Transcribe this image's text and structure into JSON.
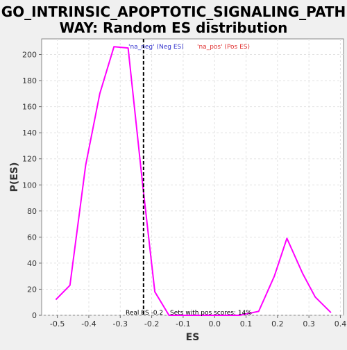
{
  "chart_data": {
    "type": "line",
    "title_lines": [
      "GO_INTRINSIC_APOPTOTIC_SIGNALING_PATH",
      "WAY: Random ES distribution"
    ],
    "xlabel": "ES",
    "ylabel": "P(ES)",
    "xlim": [
      -0.55,
      0.41
    ],
    "ylim": [
      0,
      212
    ],
    "x_ticks": [
      -0.5,
      -0.4,
      -0.3,
      -0.2,
      -0.1,
      0.0,
      0.1,
      0.2,
      0.3,
      0.4
    ],
    "x_tick_labels": [
      "-0.5",
      "-0.4",
      "-0.3",
      "-0.2",
      "-0.1",
      "0.0",
      "0.1",
      "0.2",
      "0.3",
      "0.4"
    ],
    "y_ticks": [
      0,
      20,
      40,
      60,
      80,
      100,
      120,
      140,
      160,
      180,
      200
    ],
    "y_tick_labels": [
      "0",
      "20",
      "40",
      "60",
      "80",
      "100",
      "120",
      "140",
      "160",
      "180",
      "200"
    ],
    "grid": true,
    "series": [
      {
        "color": "#ff00ff",
        "x": [
          -0.505,
          -0.46,
          -0.41,
          -0.365,
          -0.32,
          -0.275,
          -0.23,
          -0.19,
          -0.145,
          -0.1,
          -0.055,
          -0.01,
          0.035,
          0.08,
          0.14,
          0.19,
          0.23,
          0.28,
          0.32,
          0.37
        ],
        "y": [
          12,
          23,
          115,
          170,
          206,
          205,
          103,
          18,
          0,
          0,
          0,
          0,
          0,
          0,
          3,
          30,
          59,
          32,
          14,
          2
        ]
      }
    ],
    "real_es": -0.226,
    "real_es_color": "#000000",
    "legend_neg": {
      "text": "'na_neg' (Neg ES)",
      "color": "#3333cc"
    },
    "legend_pos": {
      "text": "'na_pos' (Pos ES)",
      "color": "#e03030"
    },
    "annotation_real_es": "Real ES -0.2",
    "annotation_pos_scores": "Sets with pos scores: 14%"
  }
}
